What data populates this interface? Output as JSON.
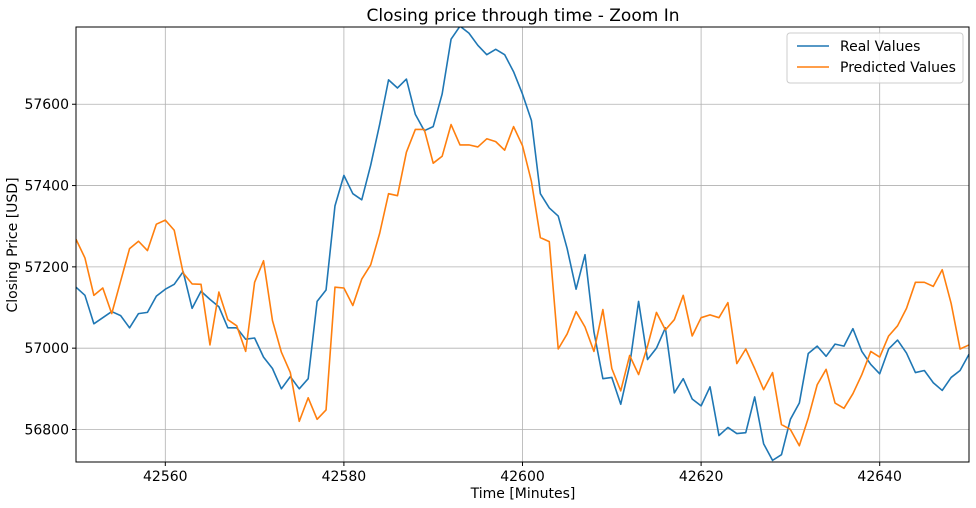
{
  "chart_data": {
    "type": "line",
    "title": "Closing price through time - Zoom In",
    "xlabel": "Time [Minutes]",
    "ylabel": "Closing Price [USD]",
    "xlim": [
      42550,
      42650
    ],
    "ylim": [
      56720,
      57790
    ],
    "xticks": [
      42560,
      42580,
      42600,
      42620,
      42640
    ],
    "yticks": [
      56800,
      57000,
      57200,
      57400,
      57600
    ],
    "grid": true,
    "legend_position": "upper right",
    "x_start": 42550,
    "series": [
      {
        "name": "Real Values",
        "color": "#1f77b4",
        "values": [
          57150,
          57130,
          57060,
          57075,
          57090,
          57080,
          57050,
          57085,
          57088,
          57128,
          57145,
          57157,
          57188,
          57098,
          57140,
          57120,
          57102,
          57050,
          57050,
          57022,
          57025,
          56978,
          56950,
          56900,
          56930,
          56900,
          56925,
          57115,
          57143,
          57350,
          57425,
          57380,
          57365,
          57450,
          57550,
          57660,
          57640,
          57662,
          57575,
          57535,
          57545,
          57625,
          57760,
          57792,
          57775,
          57745,
          57722,
          57735,
          57722,
          57680,
          57625,
          57560,
          57380,
          57345,
          57325,
          57245,
          57145,
          57230,
          57040,
          56925,
          56928,
          56862,
          56958,
          57115,
          56972,
          57000,
          57050,
          56890,
          56925,
          56875,
          56858,
          56905,
          56785,
          56805,
          56790,
          56792,
          56880,
          56765,
          56724,
          56738,
          56825,
          56865,
          56987,
          57005,
          56980,
          57010,
          57005,
          57048,
          56992,
          56960,
          56937,
          56998,
          57020,
          56988,
          56940,
          56945,
          56915,
          56896,
          56928,
          56945,
          56985
        ]
      },
      {
        "name": "Predicted Values",
        "color": "#ff7f0e",
        "values": [
          57268,
          57222,
          57130,
          57148,
          57085,
          57165,
          57245,
          57263,
          57240,
          57305,
          57315,
          57290,
          57185,
          57158,
          57157,
          57008,
          57138,
          57070,
          57055,
          56992,
          57162,
          57215,
          57068,
          56990,
          56940,
          56820,
          56878,
          56825,
          56848,
          57150,
          57148,
          57105,
          57170,
          57205,
          57282,
          57380,
          57375,
          57482,
          57538,
          57538,
          57455,
          57472,
          57550,
          57500,
          57500,
          57495,
          57515,
          57508,
          57487,
          57545,
          57498,
          57410,
          57272,
          57262,
          56998,
          57035,
          57090,
          57052,
          56992,
          57095,
          56950,
          56895,
          56982,
          56935,
          57005,
          57088,
          57045,
          57070,
          57130,
          57030,
          57075,
          57082,
          57075,
          57112,
          56962,
          56998,
          56950,
          56898,
          56940,
          56812,
          56800,
          56760,
          56828,
          56910,
          56948,
          56865,
          56852,
          56888,
          56935,
          56992,
          56978,
          57030,
          57055,
          57098,
          57162,
          57162,
          57152,
          57193,
          57110,
          56998,
          57008
        ]
      }
    ]
  }
}
